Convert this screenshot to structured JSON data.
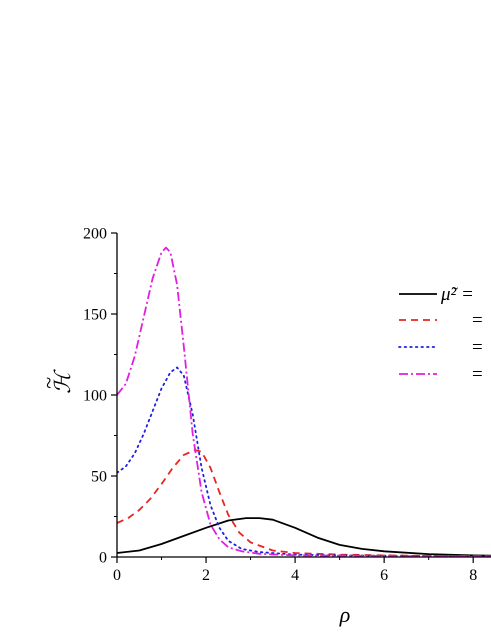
{
  "chart_data": {
    "type": "line",
    "xlabel": "ρ",
    "ylabel": "ℋ",
    "ylabel_accent": "~",
    "xlim": [
      0,
      8.4
    ],
    "ylim": [
      0,
      200
    ],
    "x_ticks": [
      0,
      2,
      4,
      6,
      8
    ],
    "y_ticks": [
      0,
      50,
      100,
      150,
      200
    ],
    "grid": false,
    "legend": {
      "placement": "right",
      "entries": [
        {
          "label": "μ̃² = ",
          "color": "#000000",
          "dash": "solid"
        },
        {
          "label": "=",
          "color": "#e8261f",
          "dash": "dashed"
        },
        {
          "label": "=",
          "color": "#1f1fe0",
          "dash": "dotted"
        },
        {
          "label": "=",
          "color": "#e01fe0",
          "dash": "dashdot"
        }
      ]
    },
    "series": [
      {
        "color": "#000000",
        "dash": "solid",
        "x": [
          0,
          0.5,
          1,
          1.5,
          2,
          2.5,
          2.9,
          3.2,
          3.5,
          4,
          4.5,
          5,
          5.5,
          6,
          7,
          8,
          8.4
        ],
        "y": [
          2.5,
          4,
          8,
          13,
          18,
          22.5,
          24,
          24,
          23,
          18,
          12,
          7.5,
          5,
          3.5,
          1.8,
          1,
          0.8
        ]
      },
      {
        "color": "#e8261f",
        "dash": "dashed",
        "x": [
          0,
          0.25,
          0.5,
          0.75,
          1,
          1.25,
          1.5,
          1.75,
          1.9,
          2.1,
          2.3,
          2.5,
          2.75,
          3,
          3.5,
          4,
          5,
          6,
          7,
          8.4
        ],
        "y": [
          21,
          24,
          29,
          36,
          45,
          55,
          63,
          66,
          65,
          55,
          40,
          26,
          15,
          9,
          4,
          2.5,
          1.5,
          1,
          0.7,
          0.5
        ]
      },
      {
        "color": "#1f1fe0",
        "dash": "dotted",
        "x": [
          0,
          0.2,
          0.4,
          0.6,
          0.8,
          1,
          1.2,
          1.35,
          1.5,
          1.7,
          1.9,
          2.1,
          2.3,
          2.5,
          2.8,
          3.2,
          4,
          5,
          6,
          7,
          8.4
        ],
        "y": [
          52,
          56,
          64,
          76,
          90,
          104,
          114,
          117,
          112,
          88,
          55,
          32,
          18,
          10,
          5,
          3,
          1.5,
          1,
          0.8,
          0.6,
          0.5
        ]
      },
      {
        "color": "#e01fe0",
        "dash": "dashdot",
        "x": [
          0,
          0.2,
          0.4,
          0.6,
          0.8,
          1,
          1.1,
          1.2,
          1.35,
          1.5,
          1.7,
          1.9,
          2.1,
          2.3,
          2.5,
          2.8,
          3.2,
          4,
          5,
          6,
          7,
          8.4
        ],
        "y": [
          100,
          107,
          124,
          148,
          172,
          188,
          191,
          188,
          168,
          130,
          76,
          40,
          20,
          11,
          6,
          3.5,
          2,
          1,
          0.8,
          0.6,
          0.5,
          0.4
        ]
      }
    ]
  }
}
